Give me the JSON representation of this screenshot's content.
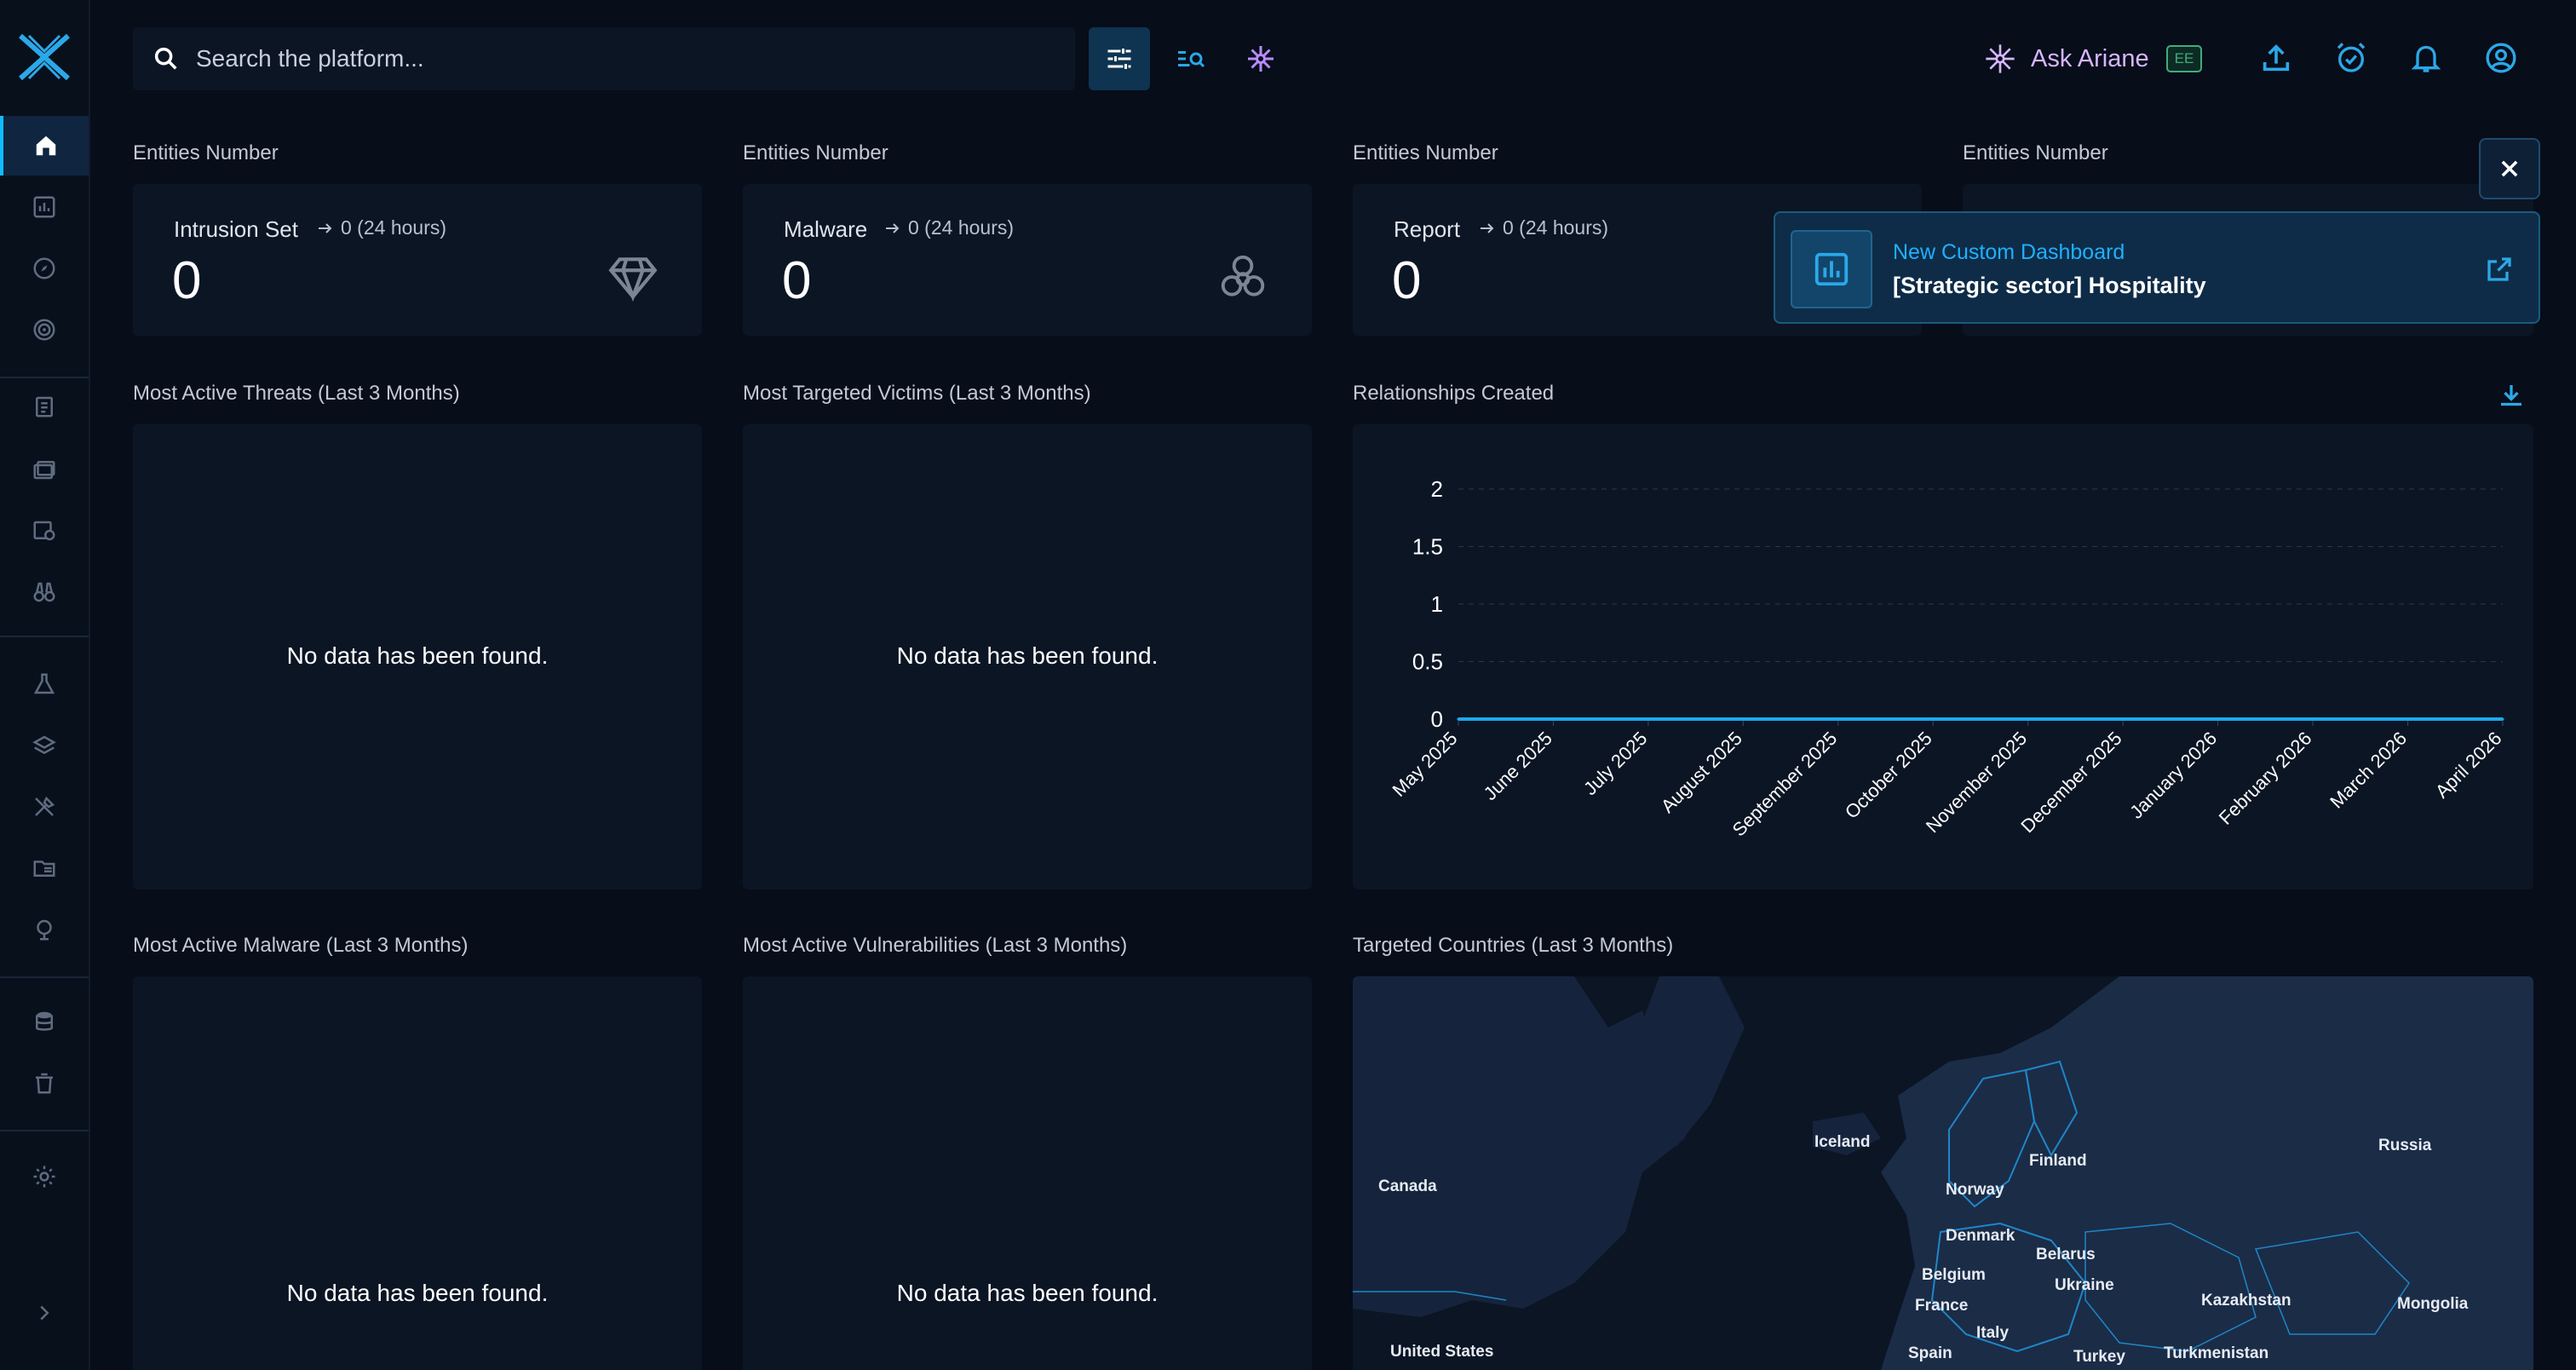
{
  "search": {
    "placeholder": "Search the platform..."
  },
  "ask": {
    "label": "Ask Ariane",
    "badge": "EE"
  },
  "entities": [
    {
      "section": "Entities Number",
      "title": "Intrusion Set",
      "delta": "0 (24 hours)",
      "value": "0",
      "icon": "diamond-icon"
    },
    {
      "section": "Entities Number",
      "title": "Malware",
      "delta": "0 (24 hours)",
      "value": "0",
      "icon": "biohazard-icon"
    },
    {
      "section": "Entities Number",
      "title": "Report",
      "delta": "0 (24 hours)",
      "value": "0",
      "icon": "report-icon"
    },
    {
      "section": "Entities Number"
    }
  ],
  "widgets": {
    "threats": {
      "title": "Most Active Threats (Last 3 Months)",
      "empty": "No data has been found."
    },
    "victims": {
      "title": "Most Targeted Victims (Last 3 Months)",
      "empty": "No data has been found."
    },
    "relationships": {
      "title": "Relationships Created"
    },
    "malware": {
      "title": "Most Active Malware (Last 3 Months)",
      "empty": "No data has been found."
    },
    "vulns": {
      "title": "Most Active Vulnerabilities (Last 3 Months)",
      "empty": "No data has been found."
    },
    "countries": {
      "title": "Targeted Countries (Last 3 Months)"
    }
  },
  "chart_data": {
    "type": "line",
    "title": "Relationships Created",
    "x": [
      "May 2025",
      "June 2025",
      "July 2025",
      "August 2025",
      "September 2025",
      "October 2025",
      "November 2025",
      "December 2025",
      "January 2026",
      "February 2026",
      "March 2026",
      "April 2026"
    ],
    "series": [
      {
        "values": [
          0,
          0,
          0,
          0,
          0,
          0,
          0,
          0,
          0,
          0,
          0,
          0
        ]
      }
    ],
    "y_ticks": [
      "0",
      "0.5",
      "1",
      "1.5",
      "2"
    ],
    "ylim": [
      0,
      2
    ],
    "grid": true,
    "color": "#1ba8f0"
  },
  "toast": {
    "subtitle": "New Custom Dashboard",
    "title": "[Strategic sector] Hospitality"
  },
  "map": {
    "countries": [
      "Canada",
      "United States",
      "Iceland",
      "Norway",
      "Finland",
      "Denmark",
      "Belarus",
      "Belgium",
      "France",
      "Ukraine",
      "Italy",
      "Spain",
      "Turkey",
      "Turkmenistan",
      "Kazakhstan",
      "Mongolia",
      "Russia"
    ]
  },
  "colors": {
    "accent": "#0fbcff",
    "background": "#070d19",
    "panel": "#0c1524",
    "ai": "#b98cff"
  }
}
